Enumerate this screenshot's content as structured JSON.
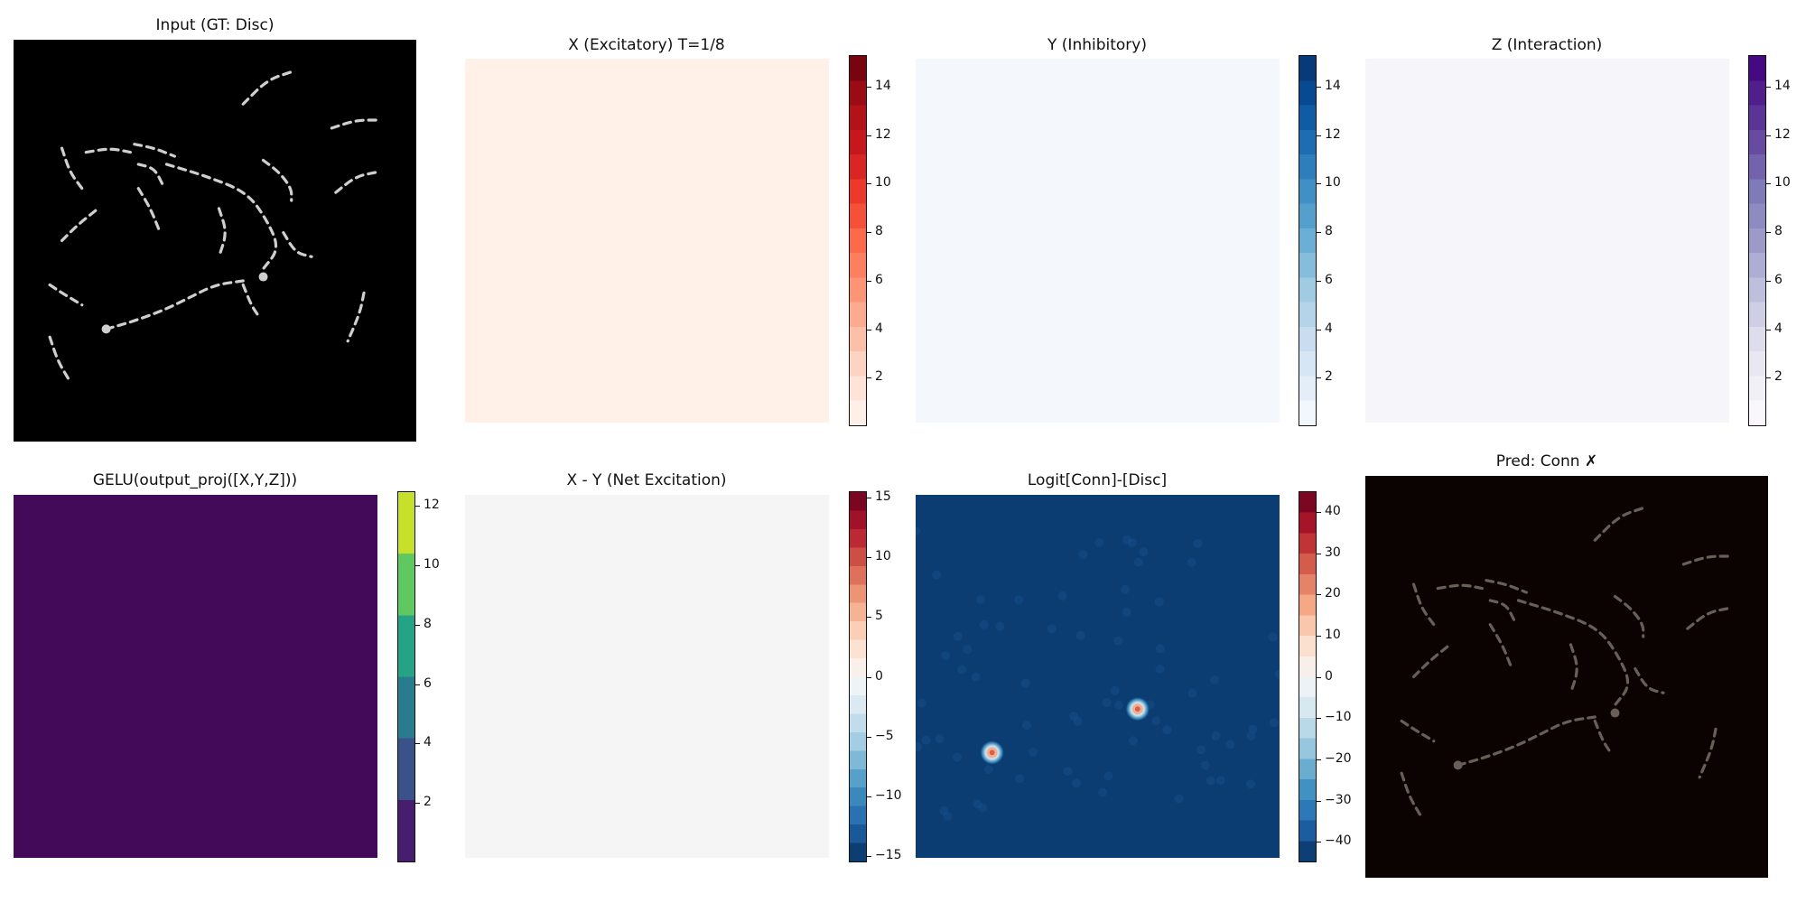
{
  "chart_data": [
    {
      "type": "heatmap",
      "title": "Input (GT: Disc)",
      "colormap": "gray",
      "background_color": "#000000",
      "stroke_color": "#cfcfcf",
      "colorbar": null
    },
    {
      "type": "heatmap",
      "title": "X (Excitatory) T=1/8",
      "colormap": "Reds",
      "fill_color": "#fff0e8",
      "colorbar": {
        "min": 0,
        "max": 15.3,
        "ticks": [
          2,
          4,
          6,
          8,
          10,
          12,
          14
        ]
      }
    },
    {
      "type": "heatmap",
      "title": "Y (Inhibitory)",
      "colormap": "Blues",
      "fill_color": "#f4f8fd",
      "colorbar": {
        "min": 0,
        "max": 15.3,
        "ticks": [
          2,
          4,
          6,
          8,
          10,
          12,
          14
        ]
      }
    },
    {
      "type": "heatmap",
      "title": "Z (Interaction)",
      "colormap": "Purples",
      "fill_color": "#f6f5f9",
      "colorbar": {
        "min": 0,
        "max": 15.3,
        "ticks": [
          2,
          4,
          6,
          8,
          10,
          12,
          14
        ]
      }
    },
    {
      "type": "heatmap",
      "title": "GELU(output_proj([X,Y,Z]))",
      "colormap": "viridis",
      "fill_color": "#440a5a",
      "colorbar": {
        "min": 0,
        "max": 12.5,
        "ticks": [
          2,
          4,
          6,
          8,
          10,
          12
        ]
      }
    },
    {
      "type": "heatmap",
      "title": "X - Y (Net Excitation)",
      "colormap": "RdBu_r",
      "fill_color": "#f5f5f5",
      "colorbar": {
        "min": -15.5,
        "max": 15.5,
        "ticks": [
          -15,
          -10,
          -5,
          0,
          5,
          10,
          15
        ]
      }
    },
    {
      "type": "heatmap",
      "title": "Logit[Conn]-[Disc]",
      "colormap": "RdBu_r",
      "fill_color": "#0b3d72",
      "colorbar": {
        "min": -45,
        "max": 45,
        "ticks": [
          -40,
          -30,
          -20,
          -10,
          0,
          10,
          20,
          30,
          40
        ]
      }
    },
    {
      "type": "heatmap",
      "title": "Pred: Conn ✗",
      "colormap": "gray",
      "background_color": "#0a0302",
      "stroke_color": "#6a5e58",
      "colorbar": null
    }
  ]
}
